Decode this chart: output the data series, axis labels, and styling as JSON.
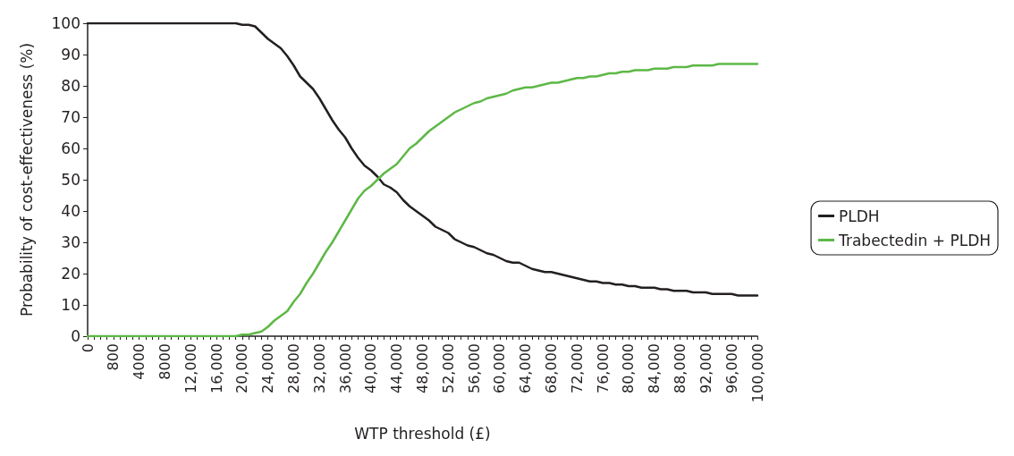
{
  "chart_data": {
    "type": "line",
    "xlabel": "WTP threshold (£)",
    "ylabel": "Probability of cost-effectiveness (%)",
    "categories": [
      "0",
      null,
      null,
      null,
      "800",
      null,
      null,
      null,
      "4000",
      null,
      null,
      null,
      "8000",
      null,
      null,
      null,
      "12,000",
      null,
      null,
      null,
      "16,000",
      null,
      null,
      null,
      "20,000",
      null,
      null,
      null,
      "24,000",
      null,
      null,
      null,
      "28,000",
      null,
      null,
      null,
      "32,000",
      null,
      null,
      null,
      "36,000",
      null,
      null,
      null,
      "40,000",
      null,
      null,
      null,
      "44,000",
      null,
      null,
      null,
      "48,000",
      null,
      null,
      null,
      "52,000",
      null,
      null,
      null,
      "56,000",
      null,
      null,
      null,
      "60,000",
      null,
      null,
      null,
      "64,000",
      null,
      null,
      null,
      "68,000",
      null,
      null,
      null,
      "72,000",
      null,
      null,
      null,
      "76,000",
      null,
      null,
      null,
      "80,000",
      null,
      null,
      null,
      "84,000",
      null,
      null,
      null,
      "88,000",
      null,
      null,
      null,
      "92,000",
      null,
      null,
      null,
      "96,000",
      null,
      null,
      null,
      "100,000"
    ],
    "series": [
      {
        "name": "PLDH",
        "color": "#231f20",
        "values": [
          100,
          100,
          100,
          100,
          100,
          100,
          100,
          100,
          100,
          100,
          100,
          100,
          100,
          100,
          100,
          100,
          100,
          100,
          100,
          100,
          100,
          100,
          100,
          100,
          99.5,
          99.5,
          99,
          97,
          95,
          93.5,
          92,
          89.5,
          86.5,
          83,
          81,
          79,
          76,
          72.5,
          69,
          66,
          63.5,
          60,
          57,
          54.5,
          53,
          51,
          48.5,
          47.5,
          46,
          43.5,
          41.5,
          40,
          38.5,
          37,
          35,
          34,
          33,
          31,
          30,
          29,
          28.5,
          27.5,
          26.5,
          26,
          25,
          24,
          23.5,
          23.5,
          22.5,
          21.5,
          21,
          20.5,
          20.5,
          20,
          19.5,
          19,
          18.5,
          18,
          17.5,
          17.5,
          17,
          17,
          16.5,
          16.5,
          16,
          16,
          15.5,
          15.5,
          15.5,
          15,
          15,
          14.5,
          14.5,
          14.5,
          14,
          14,
          14,
          13.5,
          13.5,
          13.5,
          13.5,
          13,
          13,
          13,
          13
        ]
      },
      {
        "name": "Trabectedin + PLDH",
        "color": "#5db847",
        "values": [
          0,
          0,
          0,
          0,
          0,
          0,
          0,
          0,
          0,
          0,
          0,
          0,
          0,
          0,
          0,
          0,
          0,
          0,
          0,
          0,
          0,
          0,
          0,
          0,
          0.5,
          0.5,
          1,
          1.5,
          3,
          5,
          6.5,
          8,
          11,
          13.5,
          17,
          20,
          23.5,
          27,
          30,
          33.5,
          37,
          40.5,
          44,
          46.5,
          48,
          50,
          52,
          53.5,
          55,
          57.5,
          60,
          61.5,
          63.5,
          65.5,
          67,
          68.5,
          70,
          71.5,
          72.5,
          73.5,
          74.5,
          75,
          76,
          76.5,
          77,
          77.5,
          78.5,
          79,
          79.5,
          79.5,
          80,
          80.5,
          81,
          81,
          81.5,
          82,
          82.5,
          82.5,
          83,
          83,
          83.5,
          84,
          84,
          84.5,
          84.5,
          85,
          85,
          85,
          85.5,
          85.5,
          85.5,
          86,
          86,
          86,
          86.5,
          86.5,
          86.5,
          86.5,
          87,
          87,
          87,
          87,
          87,
          87,
          87
        ]
      }
    ],
    "ylim": [
      0,
      100
    ],
    "yticks": [
      0,
      10,
      20,
      30,
      40,
      50,
      60,
      70,
      80,
      90,
      100
    ],
    "grid": false,
    "legend": "right",
    "marker": "none",
    "line_style": "solid"
  }
}
